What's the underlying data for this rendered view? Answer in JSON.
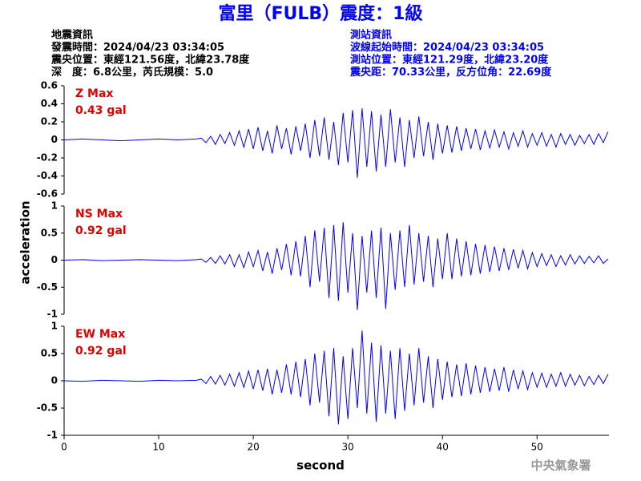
{
  "header": {
    "title": "富里（FULB）震度：1級",
    "left": [
      "地震資訊",
      "發震時間：2024/04/23 03:34:05",
      "震央位置：東經121.56度，北緯23.78度",
      "深　度：6.8公里，芮氏規模：5.0"
    ],
    "right": [
      "測站資訊",
      "波線起始時間：2024/04/23 03:34:05",
      "測站位置：東經121.29度，北緯23.20度",
      "震央距：70.33公里，反方位角：22.69度"
    ]
  },
  "footer": "中央氣象署",
  "chart_data": [
    {
      "type": "line",
      "annotations": [
        "Z Max",
        "0.43 gal"
      ],
      "x": [
        0,
        2,
        4,
        6,
        8,
        10,
        12,
        14,
        14.5,
        15,
        15.5,
        16,
        16.5,
        17,
        17.5,
        18,
        18.5,
        19,
        19.5,
        20,
        20.5,
        21,
        21.5,
        22,
        22.5,
        23,
        23.5,
        24,
        24.5,
        25,
        25.5,
        26,
        26.5,
        27,
        27.5,
        28,
        28.5,
        29,
        29.5,
        30,
        30.5,
        31,
        31.5,
        32,
        32.5,
        33,
        33.5,
        34,
        34.5,
        35,
        35.5,
        36,
        36.5,
        37,
        37.5,
        38,
        38.5,
        39,
        39.5,
        40,
        40.5,
        41,
        41.5,
        42,
        42.5,
        43,
        43.5,
        44,
        44.5,
        45,
        45.5,
        46,
        46.5,
        47,
        47.5,
        48,
        48.5,
        49,
        49.5,
        50,
        50.5,
        51,
        51.5,
        52,
        52.5,
        53,
        53.5,
        54,
        54.5,
        55,
        55.5,
        56,
        56.5,
        57,
        57.5
      ],
      "series": [
        {
          "color": "#0000ff",
          "values": [
            0,
            0.01,
            0,
            -0.01,
            0,
            0.01,
            0,
            0.01,
            0.02,
            -0.03,
            0.04,
            -0.05,
            0.06,
            -0.04,
            0.08,
            -0.06,
            0.1,
            -0.08,
            0.12,
            -0.1,
            0.14,
            -0.12,
            0.1,
            -0.15,
            0.16,
            -0.1,
            0.13,
            -0.16,
            0.15,
            -0.12,
            0.18,
            -0.2,
            0.22,
            -0.18,
            0.25,
            -0.22,
            0.2,
            -0.28,
            0.3,
            -0.25,
            0.33,
            -0.42,
            0.35,
            -0.3,
            0.32,
            -0.35,
            0.28,
            -0.3,
            0.34,
            -0.25,
            0.25,
            -0.3,
            0.22,
            -0.2,
            0.26,
            -0.18,
            0.2,
            -0.22,
            0.18,
            -0.15,
            0.16,
            -0.14,
            0.15,
            -0.12,
            0.13,
            -0.1,
            0.12,
            -0.11,
            0.1,
            -0.09,
            0.11,
            -0.08,
            0.09,
            -0.1,
            0.08,
            -0.07,
            0.1,
            -0.08,
            0.07,
            -0.06,
            0.08,
            -0.07,
            0.06,
            -0.08,
            0.07,
            -0.05,
            0.06,
            -0.06,
            0.05,
            -0.04,
            0.06,
            -0.05,
            0.07,
            -0.03,
            0.09
          ]
        }
      ],
      "xlim": [
        0,
        57.6
      ],
      "ylim": [
        -0.6,
        0.6
      ],
      "yticks": [
        0.6,
        0.4,
        0.2,
        0,
        -0.2,
        -0.4,
        -0.6
      ]
    },
    {
      "type": "line",
      "annotations": [
        "NS Max",
        "0.92 gal"
      ],
      "ylabel": "acceleration",
      "x": [
        0,
        2,
        4,
        6,
        8,
        10,
        12,
        14,
        14.5,
        15,
        15.5,
        16,
        16.5,
        17,
        17.5,
        18,
        18.5,
        19,
        19.5,
        20,
        20.5,
        21,
        21.5,
        22,
        22.5,
        23,
        23.5,
        24,
        24.5,
        25,
        25.5,
        26,
        26.5,
        27,
        27.5,
        28,
        28.5,
        29,
        29.5,
        30,
        30.5,
        31,
        31.5,
        32,
        32.5,
        33,
        33.5,
        34,
        34.5,
        35,
        35.5,
        36,
        36.5,
        37,
        37.5,
        38,
        38.5,
        39,
        39.5,
        40,
        40.5,
        41,
        41.5,
        42,
        42.5,
        43,
        43.5,
        44,
        44.5,
        45,
        45.5,
        46,
        46.5,
        47,
        47.5,
        48,
        48.5,
        49,
        49.5,
        50,
        50.5,
        51,
        51.5,
        52,
        52.5,
        53,
        53.5,
        54,
        54.5,
        55,
        55.5,
        56,
        56.5,
        57,
        57.5
      ],
      "series": [
        {
          "color": "#0000ff",
          "values": [
            0,
            0.01,
            -0.01,
            0,
            0.01,
            0,
            -0.01,
            0.01,
            0.02,
            -0.04,
            0.05,
            -0.06,
            0.08,
            -0.07,
            0.1,
            -0.12,
            0.1,
            -0.14,
            0.15,
            -0.12,
            0.18,
            -0.2,
            0.15,
            -0.25,
            0.22,
            -0.18,
            0.3,
            -0.28,
            0.35,
            -0.3,
            0.45,
            -0.5,
            0.55,
            -0.4,
            0.6,
            -0.7,
            0.65,
            -0.75,
            0.7,
            -0.6,
            0.5,
            -0.92,
            0.45,
            -0.6,
            0.55,
            -0.7,
            0.6,
            -0.9,
            0.5,
            -0.55,
            0.55,
            -0.5,
            0.65,
            -0.45,
            0.5,
            -0.4,
            0.45,
            -0.5,
            0.4,
            -0.35,
            0.5,
            -0.35,
            0.4,
            -0.3,
            0.35,
            -0.28,
            0.3,
            -0.25,
            0.28,
            -0.22,
            0.25,
            -0.2,
            0.22,
            -0.18,
            0.2,
            -0.15,
            0.18,
            -0.16,
            0.14,
            -0.12,
            0.12,
            -0.1,
            0.1,
            -0.12,
            0.08,
            -0.09,
            0.1,
            -0.07,
            0.08,
            -0.06,
            0.07,
            -0.05,
            0.08,
            -0.06,
            0.02
          ]
        }
      ],
      "xlim": [
        0,
        57.6
      ],
      "ylim": [
        -1,
        1
      ],
      "yticks": [
        1,
        0.5,
        0,
        -0.5,
        -1
      ]
    },
    {
      "type": "line",
      "annotations": [
        "EW Max",
        "0.92 gal"
      ],
      "xlabel": "second",
      "x": [
        0,
        2,
        4,
        6,
        8,
        10,
        12,
        14,
        14.5,
        15,
        15.5,
        16,
        16.5,
        17,
        17.5,
        18,
        18.5,
        19,
        19.5,
        20,
        20.5,
        21,
        21.5,
        22,
        22.5,
        23,
        23.5,
        24,
        24.5,
        25,
        25.5,
        26,
        26.5,
        27,
        27.5,
        28,
        28.5,
        29,
        29.5,
        30,
        30.5,
        31,
        31.5,
        32,
        32.5,
        33,
        33.5,
        34,
        34.5,
        35,
        35.5,
        36,
        36.5,
        37,
        37.5,
        38,
        38.5,
        39,
        39.5,
        40,
        40.5,
        41,
        41.5,
        42,
        42.5,
        43,
        43.5,
        44,
        44.5,
        45,
        45.5,
        46,
        46.5,
        47,
        47.5,
        48,
        48.5,
        49,
        49.5,
        50,
        50.5,
        51,
        51.5,
        52,
        52.5,
        53,
        53.5,
        54,
        54.5,
        55,
        55.5,
        56,
        56.5,
        57,
        57.5
      ],
      "series": [
        {
          "color": "#0000ff",
          "values": [
            0,
            -0.01,
            0.01,
            0,
            -0.01,
            0.01,
            0,
            0.01,
            0.03,
            -0.05,
            0.08,
            -0.06,
            0.1,
            -0.08,
            0.12,
            -0.1,
            0.15,
            -0.12,
            0.18,
            -0.15,
            0.2,
            -0.18,
            0.22,
            -0.25,
            0.2,
            -0.22,
            0.3,
            -0.25,
            0.35,
            -0.3,
            0.4,
            -0.45,
            0.5,
            -0.4,
            0.55,
            -0.65,
            0.6,
            -0.8,
            0.45,
            -0.7,
            0.6,
            -0.5,
            0.92,
            -0.6,
            0.7,
            -0.75,
            0.65,
            -0.6,
            0.55,
            -0.7,
            0.6,
            -0.55,
            0.5,
            -0.45,
            0.6,
            -0.4,
            0.45,
            -0.5,
            0.4,
            -0.35,
            0.35,
            -0.3,
            0.3,
            -0.28,
            0.32,
            -0.25,
            0.28,
            -0.22,
            0.25,
            -0.2,
            0.22,
            -0.18,
            0.25,
            -0.2,
            0.2,
            -0.15,
            0.18,
            -0.16,
            0.15,
            -0.12,
            0.14,
            -0.12,
            0.12,
            -0.1,
            0.15,
            -0.1,
            0.12,
            -0.08,
            0.1,
            -0.09,
            0.08,
            -0.07,
            0.1,
            -0.05,
            0.12
          ]
        }
      ],
      "xlim": [
        0,
        57.6
      ],
      "ylim": [
        -1,
        1
      ],
      "yticks": [
        1,
        0.5,
        0,
        -0.5,
        -1
      ],
      "xticks": [
        0,
        10,
        20,
        30,
        40,
        50
      ]
    }
  ]
}
